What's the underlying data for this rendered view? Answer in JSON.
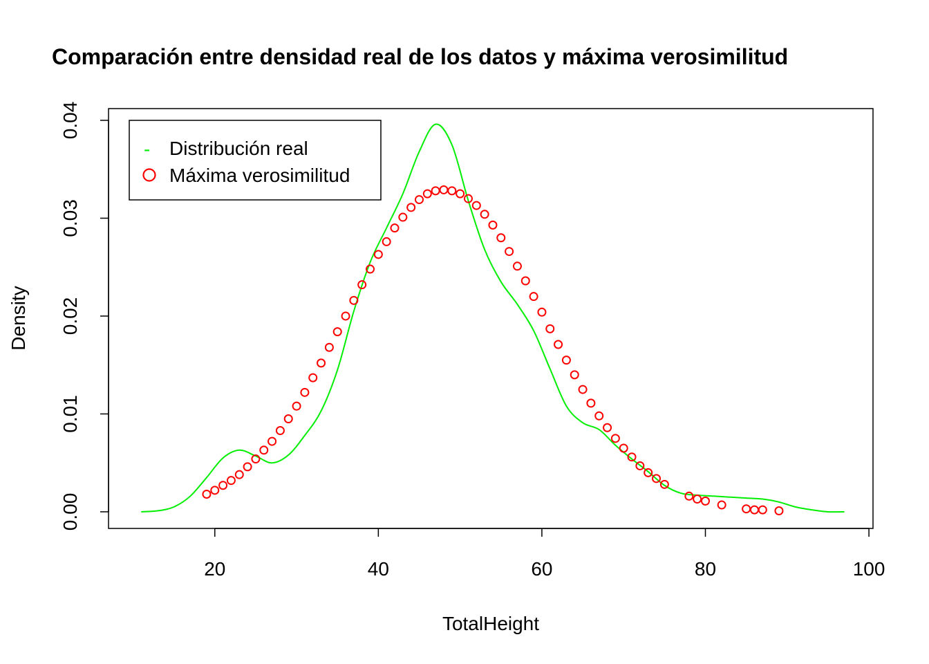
{
  "chart_data": {
    "type": "line",
    "title": "Comparación entre densidad real de los datos y máxima verosimilitud",
    "xlabel": "TotalHeight",
    "ylabel": "Density",
    "xlim": [
      7,
      100.5
    ],
    "ylim": [
      -0.0017,
      0.0412
    ],
    "x_ticks": [
      20,
      40,
      60,
      80,
      100
    ],
    "x_tick_labels": [
      "20",
      "40",
      "60",
      "80",
      "100"
    ],
    "y_ticks": [
      0.0,
      0.01,
      0.02,
      0.03,
      0.04
    ],
    "y_tick_labels": [
      "0.00",
      "0.01",
      "0.02",
      "0.03",
      "0.04"
    ],
    "grid": false,
    "legend_position": "top-left",
    "series": [
      {
        "name": "Distribución real",
        "kind": "line",
        "color": "#00ee00",
        "x": [
          11,
          13,
          15,
          17,
          19,
          21,
          23,
          25,
          27,
          29,
          31,
          33,
          35,
          37,
          39,
          41,
          43,
          45,
          47,
          49,
          51,
          53,
          55,
          57,
          59,
          61,
          63,
          65,
          67,
          69,
          71,
          73,
          75,
          77,
          79,
          81,
          83,
          85,
          87,
          89,
          91,
          93,
          95,
          97
        ],
        "y": [
          0.0,
          0.0001,
          0.0005,
          0.0016,
          0.0035,
          0.0055,
          0.0063,
          0.0057,
          0.005,
          0.0058,
          0.0078,
          0.0103,
          0.0145,
          0.0205,
          0.0255,
          0.029,
          0.0325,
          0.0368,
          0.0396,
          0.0375,
          0.0318,
          0.0268,
          0.0235,
          0.0212,
          0.0185,
          0.0146,
          0.0108,
          0.0091,
          0.0084,
          0.0068,
          0.0054,
          0.0041,
          0.0027,
          0.0019,
          0.0017,
          0.0016,
          0.0015,
          0.0014,
          0.0013,
          0.001,
          0.0005,
          0.0002,
          0.0,
          0.0
        ]
      },
      {
        "name": "Máxima verosimilitud",
        "kind": "points",
        "color": "#ff0000",
        "x": [
          19,
          20,
          21,
          22,
          23,
          24,
          25,
          26,
          27,
          28,
          29,
          30,
          31,
          32,
          33,
          34,
          35,
          36,
          37,
          38,
          39,
          40,
          41,
          42,
          43,
          44,
          45,
          46,
          47,
          48,
          49,
          50,
          51,
          52,
          53,
          54,
          55,
          56,
          57,
          58,
          59,
          60,
          61,
          62,
          63,
          64,
          65,
          66,
          67,
          68,
          69,
          70,
          71,
          72,
          73,
          74,
          75,
          78,
          79,
          80,
          82,
          85,
          86,
          87,
          89
        ],
        "y": [
          0.0018,
          0.0022,
          0.0027,
          0.0032,
          0.0038,
          0.0046,
          0.0054,
          0.0063,
          0.0072,
          0.0083,
          0.0095,
          0.0108,
          0.0122,
          0.0137,
          0.0152,
          0.0168,
          0.0184,
          0.02,
          0.0216,
          0.0232,
          0.0248,
          0.0263,
          0.0276,
          0.029,
          0.0301,
          0.0311,
          0.0319,
          0.0325,
          0.0328,
          0.0329,
          0.0328,
          0.0325,
          0.032,
          0.0313,
          0.0304,
          0.0293,
          0.028,
          0.0266,
          0.0251,
          0.0236,
          0.022,
          0.0204,
          0.0187,
          0.0171,
          0.0155,
          0.014,
          0.0125,
          0.0111,
          0.0098,
          0.0086,
          0.0075,
          0.0065,
          0.0056,
          0.0047,
          0.004,
          0.0034,
          0.0028,
          0.0016,
          0.0013,
          0.0011,
          0.0007,
          0.0003,
          0.0002,
          0.0002,
          0.0001
        ]
      }
    ],
    "legend": {
      "entries": [
        {
          "label": "Distribución real",
          "symbol": "-",
          "color": "#00ee00"
        },
        {
          "label": "Máxima verosimilitud",
          "symbol": "circle",
          "color": "#ff0000"
        }
      ]
    }
  }
}
